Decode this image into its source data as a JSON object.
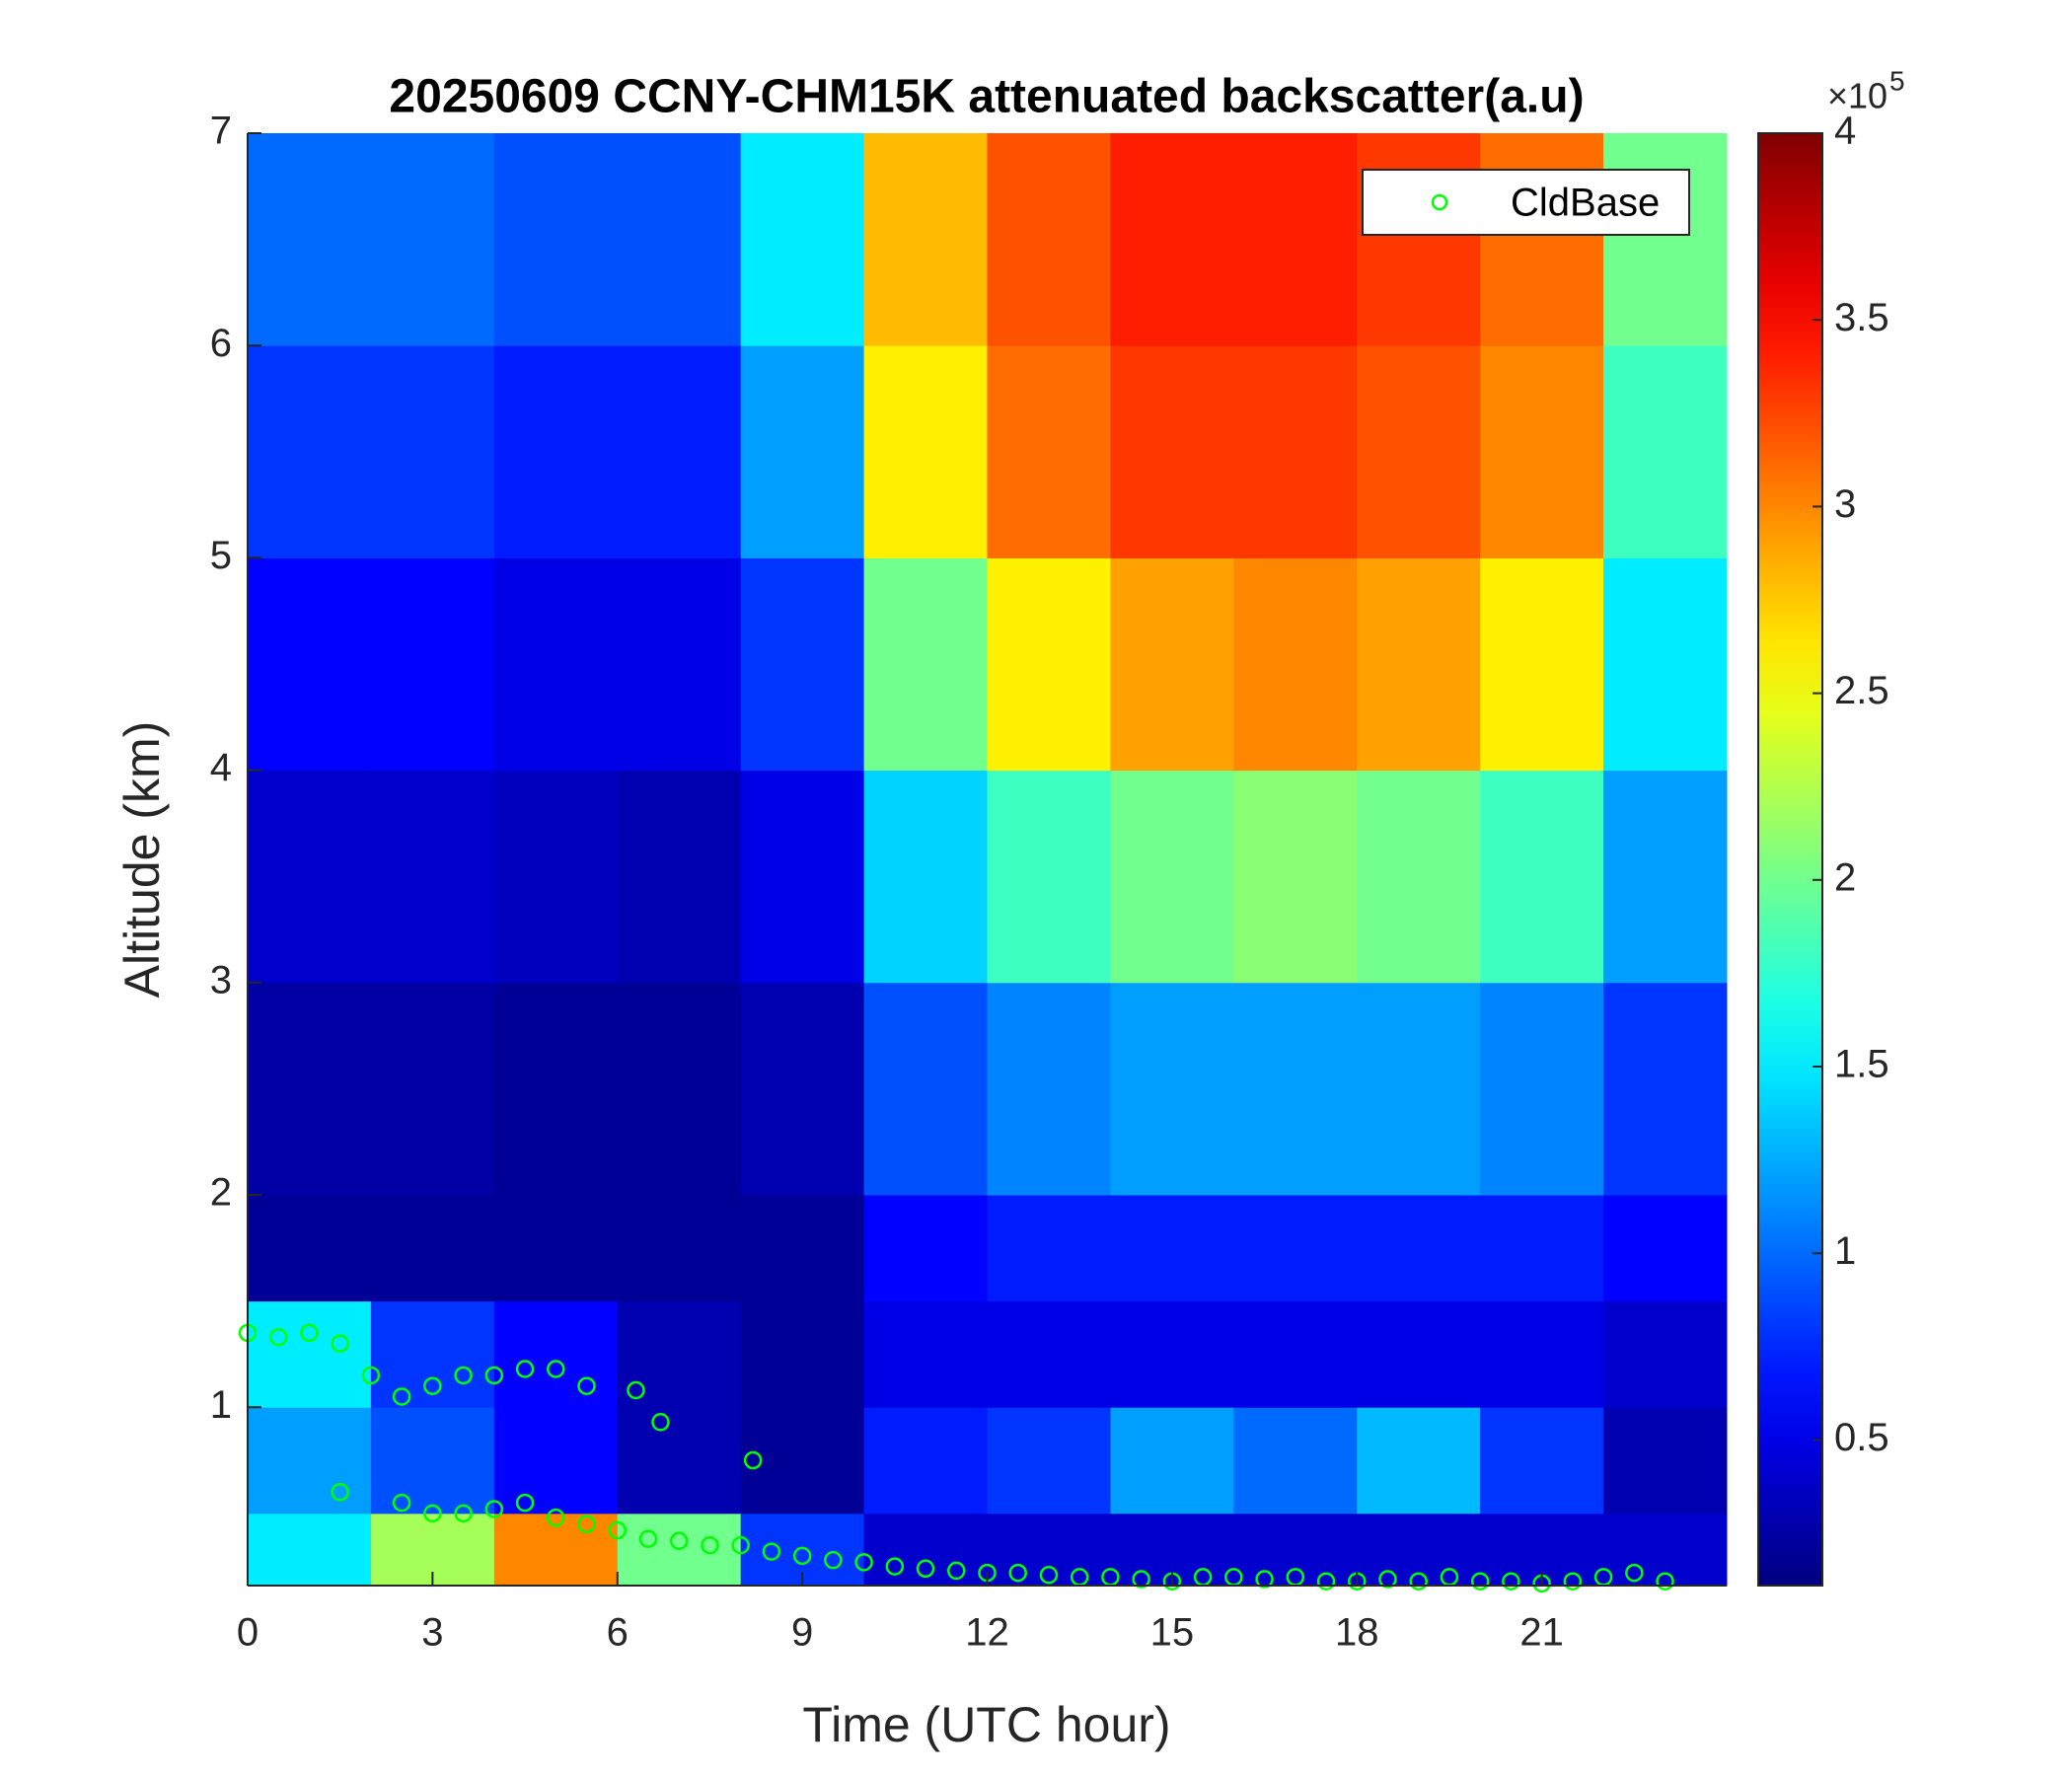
{
  "chart_data": {
    "type": "heatmap",
    "title": "20250609 CCNY-CHM15K attenuated backscatter(a.u)",
    "xlabel": "Time (UTC hour)",
    "ylabel": "Altitude (km)",
    "xlim": [
      0,
      24
    ],
    "xticks": [
      0,
      3,
      6,
      9,
      12,
      15,
      18,
      21
    ],
    "ylim": [
      0.16,
      7
    ],
    "yticks": [
      1,
      2,
      3,
      4,
      5,
      6,
      7
    ],
    "colormap": "jet",
    "clim": [
      0.11,
      4
    ],
    "cticks": [
      0.5,
      1,
      1.5,
      2,
      2.5,
      3,
      3.5,
      4
    ],
    "colorbar_multiplier": "×10",
    "colorbar_exponent": "5",
    "x_edges": [
      0,
      2,
      4,
      6,
      8,
      10,
      12,
      14,
      16,
      18,
      20,
      22,
      24
    ],
    "y_edges": [
      0.16,
      0.5,
      1,
      1.5,
      2,
      3,
      4,
      5,
      6,
      7
    ],
    "z": [
      [
        1.5,
        2.2,
        3.0,
        2.0,
        0.8,
        0.4,
        0.4,
        0.4,
        0.4,
        0.4,
        0.4,
        0.4
      ],
      [
        1.2,
        0.9,
        0.6,
        0.3,
        0.2,
        0.7,
        0.8,
        1.2,
        1.0,
        1.3,
        0.8,
        0.3
      ],
      [
        1.5,
        0.8,
        0.6,
        0.3,
        0.2,
        0.5,
        0.5,
        0.5,
        0.5,
        0.5,
        0.5,
        0.4
      ],
      [
        0.2,
        0.2,
        0.2,
        0.2,
        0.2,
        0.6,
        0.7,
        0.7,
        0.7,
        0.7,
        0.7,
        0.6
      ],
      [
        0.25,
        0.25,
        0.2,
        0.2,
        0.3,
        0.9,
        1.1,
        1.2,
        1.2,
        1.2,
        1.1,
        0.8
      ],
      [
        0.4,
        0.4,
        0.35,
        0.3,
        0.5,
        1.4,
        1.8,
        2.0,
        2.1,
        2.0,
        1.8,
        1.2
      ],
      [
        0.6,
        0.6,
        0.5,
        0.5,
        0.8,
        2.0,
        2.6,
        2.9,
        3.0,
        2.9,
        2.6,
        1.5
      ],
      [
        0.8,
        0.8,
        0.7,
        0.7,
        1.2,
        2.6,
        3.1,
        3.3,
        3.3,
        3.2,
        3.0,
        1.8
      ],
      [
        1.0,
        1.0,
        0.9,
        0.9,
        1.5,
        2.8,
        3.2,
        3.4,
        3.4,
        3.3,
        3.1,
        2.0
      ]
    ],
    "legend": "upper right",
    "series": [
      {
        "name": "CldBase",
        "type": "scatter",
        "color": "#00ff00",
        "x": [
          0,
          0.5,
          1,
          1.5,
          2,
          2.5,
          3,
          3.5,
          4,
          4.5,
          5,
          5.5,
          6.3,
          6.7,
          8.2,
          1.5,
          2.5,
          3,
          3.5,
          4,
          4.5,
          5,
          5.5,
          6,
          6.5,
          7,
          7.5,
          8,
          8.5,
          9,
          9.5,
          10,
          10.5,
          11,
          11.5,
          12,
          12.5,
          13,
          13.5,
          14,
          14.5,
          15,
          15.5,
          16,
          16.5,
          17,
          17.5,
          18,
          18.5,
          19,
          19.5,
          20,
          20.5,
          21,
          21.5,
          22,
          22.5,
          23
        ],
        "y": [
          1.35,
          1.33,
          1.35,
          1.3,
          1.15,
          1.05,
          1.1,
          1.15,
          1.15,
          1.18,
          1.18,
          1.1,
          1.08,
          0.93,
          0.75,
          0.6,
          0.55,
          0.5,
          0.5,
          0.52,
          0.55,
          0.48,
          0.45,
          0.42,
          0.38,
          0.37,
          0.35,
          0.35,
          0.32,
          0.3,
          0.28,
          0.27,
          0.25,
          0.24,
          0.23,
          0.22,
          0.22,
          0.21,
          0.2,
          0.2,
          0.19,
          0.18,
          0.2,
          0.2,
          0.19,
          0.2,
          0.18,
          0.18,
          0.19,
          0.18,
          0.2,
          0.18,
          0.18,
          0.17,
          0.18,
          0.2,
          0.22,
          0.18
        ]
      }
    ]
  }
}
